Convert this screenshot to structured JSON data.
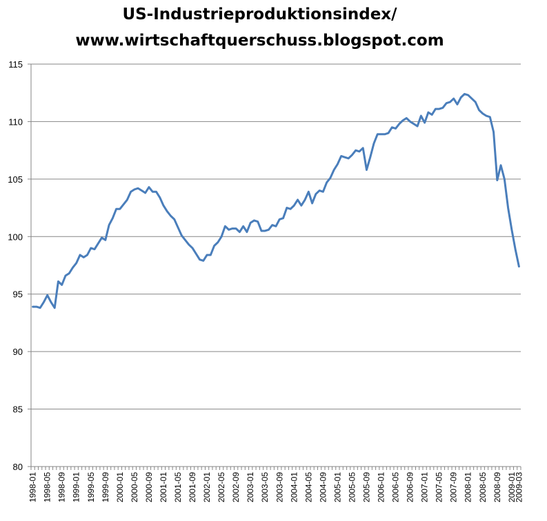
{
  "chart_data": {
    "type": "line",
    "title_lines": [
      "US-Industrieproduktionsindex/",
      "www.wirtschaftquerschuss.blogspot.com"
    ],
    "xlabel": "",
    "ylabel": "",
    "ylim": [
      80,
      115
    ],
    "y_ticks": [
      "80",
      "85",
      "90",
      "95",
      "100",
      "105",
      "110",
      "115"
    ],
    "grid": true,
    "legend": "none",
    "x_tick_labels": [
      "1998-01",
      "1998-05",
      "1998-09",
      "1999-01",
      "1999-05",
      "1999-09",
      "2000-01",
      "2000-05",
      "2000-09",
      "2001-01",
      "2001-05",
      "2001-09",
      "2002-01",
      "2002-05",
      "2002-09",
      "2003-01",
      "2003-05",
      "2003-09",
      "2004-01",
      "2004-05",
      "2004-09",
      "2005-01",
      "2005-05",
      "2005-09",
      "2006-01",
      "2006-05",
      "2006-09",
      "2007-01",
      "2007-05",
      "2007-09",
      "2008-01",
      "2008-05",
      "2008-09",
      "2009-01",
      "2009-03"
    ],
    "colors": {
      "line": "#4a7ebb",
      "grid": "#868686",
      "axis": "#868686"
    },
    "series": [
      {
        "values": [
          93.9,
          93.9,
          93.8,
          94.3,
          94.9,
          94.3,
          93.8,
          96.1,
          95.8,
          96.6,
          96.8,
          97.3,
          97.7,
          98.4,
          98.2,
          98.4,
          99.0,
          98.9,
          99.4,
          99.9,
          99.7,
          101.0,
          101.6,
          102.4,
          102.4,
          102.8,
          103.2,
          103.9,
          104.1,
          104.2,
          104.0,
          103.8,
          104.3,
          103.9,
          103.9,
          103.4,
          102.7,
          102.2,
          101.8,
          101.5,
          100.8,
          100.1,
          99.7,
          99.3,
          99.0,
          98.5,
          98.0,
          97.9,
          98.4,
          98.4,
          99.2,
          99.5,
          100.0,
          100.9,
          100.6,
          100.7,
          100.7,
          100.4,
          100.9,
          100.4,
          101.2,
          101.4,
          101.3,
          100.5,
          100.5,
          100.6,
          101.0,
          100.9,
          101.5,
          101.6,
          102.5,
          102.4,
          102.7,
          103.2,
          102.7,
          103.2,
          103.9,
          102.9,
          103.7,
          104.0,
          103.9,
          104.7,
          105.1,
          105.8,
          106.3,
          107.0,
          106.9,
          106.8,
          107.1,
          107.5,
          107.4,
          107.7,
          105.8,
          106.9,
          108.1,
          108.9,
          108.9,
          108.9,
          109.0,
          109.5,
          109.4,
          109.8,
          110.1,
          110.3,
          110.0,
          109.8,
          109.6,
          110.5,
          109.9,
          110.8,
          110.6,
          111.1,
          111.1,
          111.2,
          111.6,
          111.7,
          112.0,
          111.5,
          112.1,
          112.4,
          112.3,
          112.0,
          111.7,
          111.0,
          110.7,
          110.5,
          110.4,
          109.1,
          104.9,
          106.2,
          105.0,
          102.5,
          100.6,
          98.9,
          97.4
        ]
      }
    ]
  }
}
